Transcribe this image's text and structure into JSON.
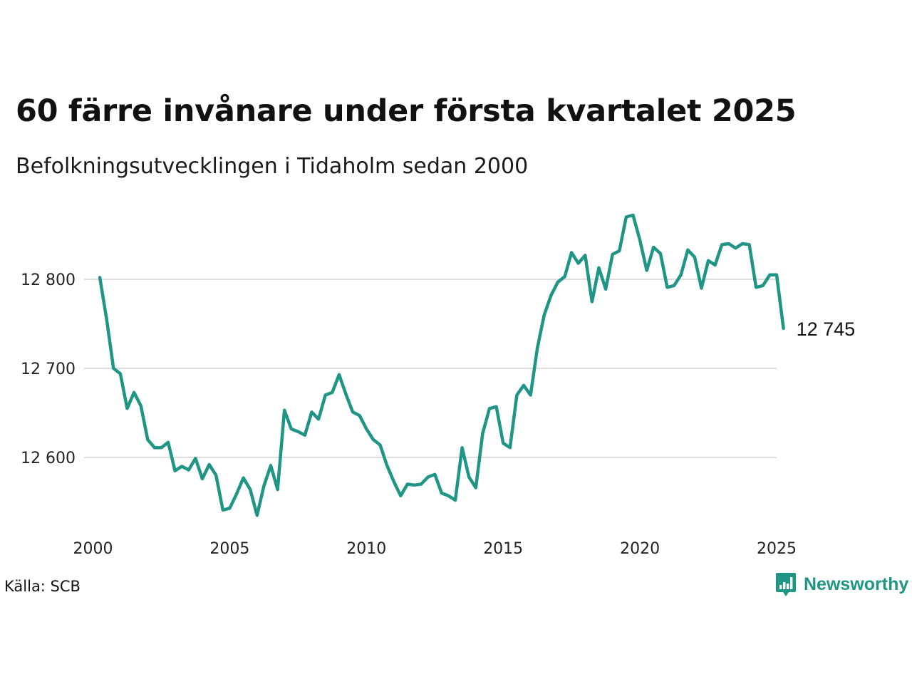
{
  "header": {
    "title": "60 färre invånare under första kvartalet 2025",
    "subtitle": "Befolkningsutvecklingen i Tidaholm sedan 2000"
  },
  "footer": {
    "source": "Källa: SCB",
    "brand": "Newsworthy",
    "brand_icon": "bar-chart-speech-bubble-icon"
  },
  "colors": {
    "line": "#1f9585",
    "gridline": "#dddddd",
    "brand": "#1f9585"
  },
  "chart_data": {
    "type": "line",
    "title": "60 färre invånare under första kvartalet 2025",
    "subtitle": "Befolkningsutvecklingen i Tidaholm sedan 2000",
    "xlabel": "",
    "ylabel": "",
    "x_ticks": [
      2000,
      2005,
      2010,
      2015,
      2020,
      2025
    ],
    "x_tick_labels": [
      "2000",
      "2005",
      "2010",
      "2015",
      "2020",
      "2025"
    ],
    "y_ticks": [
      12600,
      12700,
      12800
    ],
    "y_tick_labels": [
      "12 600",
      "12 700",
      "12 800"
    ],
    "xlim": [
      2000,
      2025.25
    ],
    "ylim": [
      12530,
      12880
    ],
    "grid": "horizontal",
    "legend": "none",
    "end_label": "12 745",
    "series": [
      {
        "x": [
          2000.25,
          2000.5,
          2000.75,
          2001,
          2001.25,
          2001.5,
          2001.75,
          2002,
          2002.25,
          2002.5,
          2002.75,
          2003,
          2003.25,
          2003.5,
          2003.75,
          2004,
          2004.25,
          2004.5,
          2004.75,
          2005,
          2005.25,
          2005.5,
          2005.75,
          2006,
          2006.25,
          2006.5,
          2006.75,
          2007,
          2007.25,
          2007.5,
          2007.75,
          2008,
          2008.25,
          2008.5,
          2008.75,
          2009,
          2009.25,
          2009.5,
          2009.75,
          2010,
          2010.25,
          2010.5,
          2010.75,
          2011,
          2011.25,
          2011.5,
          2011.75,
          2012,
          2012.25,
          2012.5,
          2012.75,
          2013,
          2013.25,
          2013.5,
          2013.75,
          2014,
          2014.25,
          2014.5,
          2014.75,
          2015,
          2015.25,
          2015.5,
          2015.75,
          2016,
          2016.25,
          2016.5,
          2016.75,
          2017,
          2017.25,
          2017.5,
          2017.75,
          2018,
          2018.25,
          2018.5,
          2018.75,
          2019,
          2019.25,
          2019.5,
          2019.75,
          2020,
          2020.25,
          2020.5,
          2020.75,
          2021,
          2021.25,
          2021.5,
          2021.75,
          2022,
          2022.25,
          2022.5,
          2022.75,
          2023,
          2023.25,
          2023.5,
          2023.75,
          2024,
          2024.25,
          2024.5,
          2024.75,
          2025,
          2025.25
        ],
        "values": [
          12802,
          12755,
          12700,
          12694,
          12655,
          12673,
          12658,
          12620,
          12611,
          12611,
          12617,
          12585,
          12590,
          12586,
          12599,
          12576,
          12592,
          12580,
          12541,
          12543,
          12559,
          12577,
          12564,
          12535,
          12568,
          12591,
          12564,
          12653,
          12632,
          12629,
          12625,
          12651,
          12643,
          12670,
          12673,
          12693,
          12671,
          12651,
          12647,
          12632,
          12620,
          12614,
          12591,
          12573,
          12557,
          12570,
          12569,
          12570,
          12578,
          12581,
          12560,
          12557,
          12552,
          12611,
          12578,
          12566,
          12627,
          12655,
          12657,
          12616,
          12611,
          12670,
          12681,
          12670,
          12723,
          12760,
          12782,
          12797,
          12803,
          12830,
          12818,
          12827,
          12775,
          12813,
          12789,
          12828,
          12832,
          12870,
          12872,
          12844,
          12810,
          12836,
          12829,
          12791,
          12793,
          12805,
          12833,
          12825,
          12790,
          12821,
          12816,
          12839,
          12840,
          12835,
          12840,
          12839,
          12791,
          12793,
          12805,
          12805,
          12745
        ]
      }
    ]
  }
}
